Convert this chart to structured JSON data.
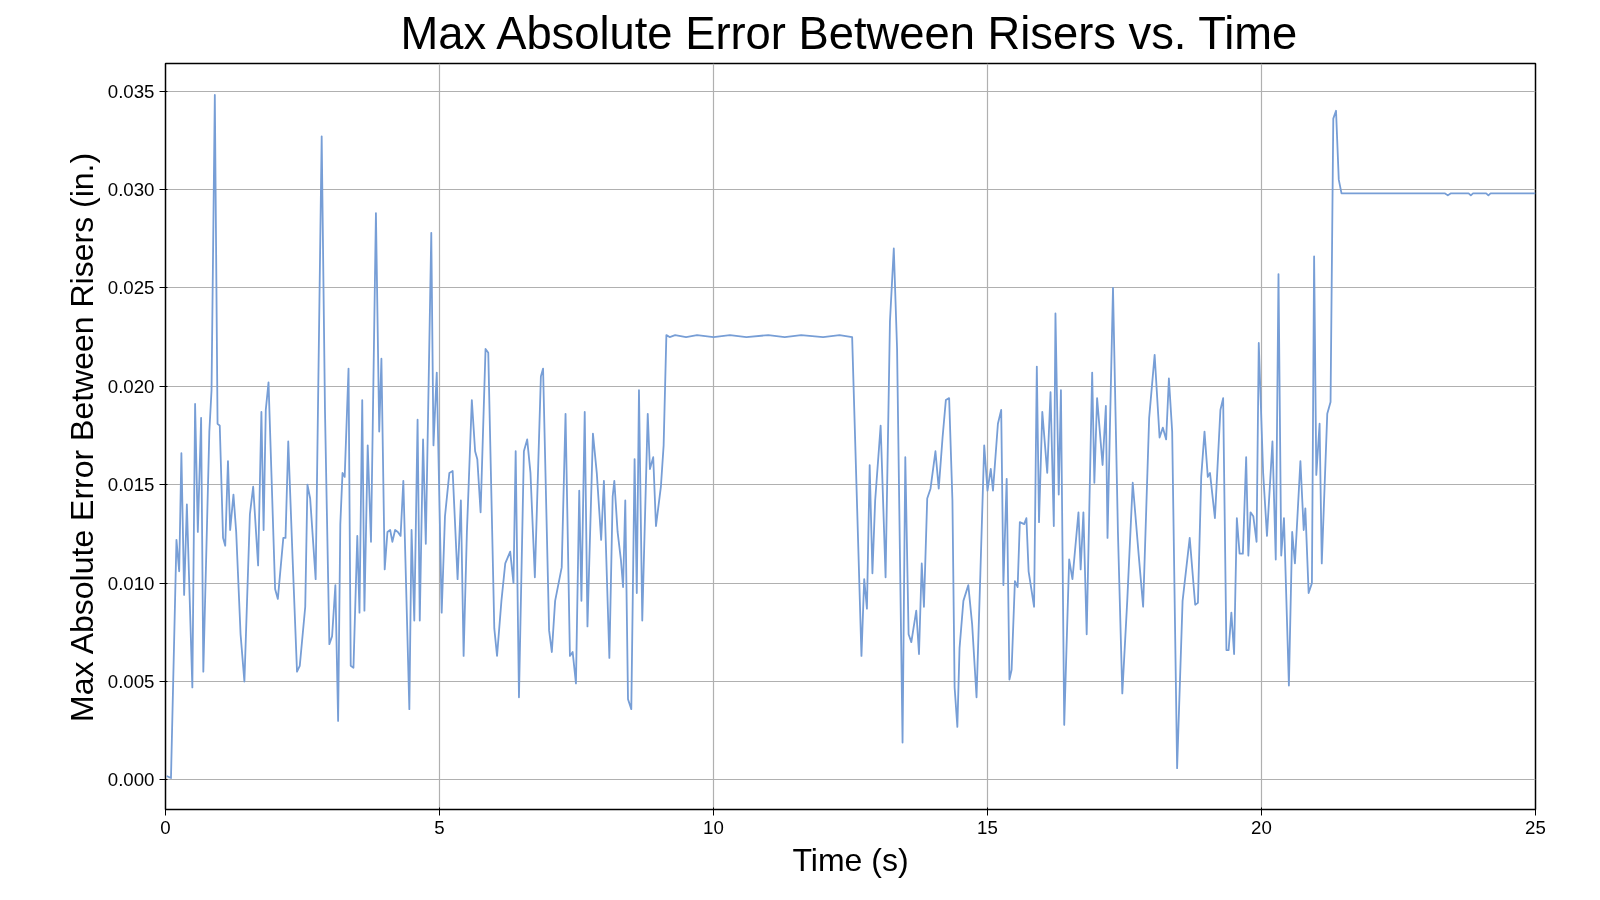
{
  "chart_data": {
    "type": "line",
    "title": "Max Absolute Error Between Risers vs. Time",
    "xlabel": "Time (s)",
    "ylabel": "Max Absolute Error Between Risers (in.)",
    "xlim": [
      0,
      25
    ],
    "ylim": [
      -0.0015,
      0.0364
    ],
    "xticks": [
      0,
      5,
      10,
      15,
      20,
      25
    ],
    "yticks": [
      {
        "value": 0,
        "label": "0.000"
      },
      {
        "value": 0.005,
        "label": "0.005"
      },
      {
        "value": 0.01,
        "label": "0.010"
      },
      {
        "value": 0.015,
        "label": "0.015"
      },
      {
        "value": 0.02,
        "label": "0.020"
      },
      {
        "value": 0.025,
        "label": "0.025"
      },
      {
        "value": 0.03,
        "label": "0.030"
      },
      {
        "value": 0.035,
        "label": "0.035"
      }
    ],
    "grid": true,
    "line_style": "solid",
    "series": [
      {
        "color": "#779ed6",
        "x": [
          0.02,
          0.1,
          0.2,
          0.25,
          0.29,
          0.34,
          0.39,
          0.49,
          0.54,
          0.59,
          0.65,
          0.69,
          0.8,
          0.84,
          0.9,
          0.95,
          0.99,
          1.05,
          1.09,
          1.14,
          1.18,
          1.24,
          1.29,
          1.37,
          1.44,
          1.54,
          1.6,
          1.69,
          1.75,
          1.79,
          1.83,
          1.88,
          2.0,
          2.05,
          2.15,
          2.19,
          2.24,
          2.32,
          2.4,
          2.45,
          2.55,
          2.59,
          2.64,
          2.74,
          2.85,
          2.91,
          2.99,
          3.04,
          3.1,
          3.15,
          3.19,
          3.23,
          3.27,
          3.34,
          3.38,
          3.43,
          3.5,
          3.54,
          3.59,
          3.63,
          3.69,
          3.75,
          3.84,
          3.9,
          3.94,
          4.0,
          4.05,
          4.1,
          4.14,
          4.19,
          4.24,
          4.29,
          4.34,
          4.45,
          4.49,
          4.54,
          4.6,
          4.64,
          4.7,
          4.75,
          4.85,
          4.89,
          4.95,
          5.04,
          5.1,
          5.18,
          5.24,
          5.33,
          5.39,
          5.44,
          5.5,
          5.59,
          5.65,
          5.69,
          5.75,
          5.84,
          5.89,
          6.0,
          6.05,
          6.13,
          6.2,
          6.29,
          6.35,
          6.39,
          6.45,
          6.54,
          6.6,
          6.66,
          6.74,
          6.85,
          6.89,
          7.0,
          7.05,
          7.11,
          7.23,
          7.3,
          7.38,
          7.43,
          7.49,
          7.55,
          7.59,
          7.65,
          7.7,
          7.8,
          7.87,
          7.95,
          8.0,
          8.1,
          8.16,
          8.19,
          8.25,
          8.31,
          8.35,
          8.39,
          8.44,
          8.5,
          8.56,
          8.6,
          8.64,
          8.7,
          8.8,
          8.84,
          8.9,
          8.95,
          9.04,
          9.09,
          9.14,
          9.2,
          9.3,
          9.5,
          9.7,
          10.0,
          10.3,
          10.6,
          11.0,
          11.3,
          11.6,
          12.0,
          12.3,
          12.53,
          12.7,
          12.75,
          12.8,
          12.85,
          12.9,
          12.95,
          13.05,
          13.14,
          13.22,
          13.29,
          13.35,
          13.45,
          13.5,
          13.56,
          13.61,
          13.7,
          13.75,
          13.8,
          13.84,
          13.9,
          13.96,
          14.05,
          14.11,
          14.18,
          14.24,
          14.3,
          14.36,
          14.4,
          14.45,
          14.49,
          14.56,
          14.65,
          14.72,
          14.8,
          14.87,
          14.94,
          15.0,
          15.06,
          15.1,
          15.19,
          15.25,
          15.29,
          15.35,
          15.4,
          15.44,
          15.5,
          15.55,
          15.59,
          15.67,
          15.71,
          15.75,
          15.85,
          15.9,
          15.94,
          16.0,
          16.09,
          16.15,
          16.21,
          16.24,
          16.3,
          16.34,
          16.4,
          16.49,
          16.55,
          16.66,
          16.7,
          16.75,
          16.81,
          16.91,
          16.95,
          17.0,
          17.1,
          17.16,
          17.19,
          17.29,
          17.38,
          17.46,
          17.55,
          17.65,
          17.76,
          17.84,
          17.95,
          18.05,
          18.14,
          18.2,
          18.26,
          18.31,
          18.37,
          18.46,
          18.56,
          18.69,
          18.79,
          18.84,
          18.9,
          18.96,
          19.02,
          19.06,
          19.15,
          19.25,
          19.3,
          19.36,
          19.4,
          19.45,
          19.5,
          19.55,
          19.6,
          19.66,
          19.72,
          19.76,
          19.8,
          19.85,
          19.91,
          19.95,
          20.03,
          20.1,
          20.2,
          20.26,
          20.31,
          20.36,
          20.41,
          20.5,
          20.56,
          20.61,
          20.71,
          20.77,
          20.8,
          20.86,
          20.92,
          20.96,
          21.0,
          21.06,
          21.1,
          21.2,
          21.26,
          21.31,
          21.36,
          21.41,
          21.46,
          23.35,
          23.4,
          23.45,
          23.78,
          23.82,
          23.86,
          24.1,
          24.14,
          24.18,
          25.0
        ],
        "values": [
          0.0002,
          0.0001,
          0.0122,
          0.0106,
          0.0166,
          0.0094,
          0.014,
          0.0047,
          0.0191,
          0.0126,
          0.0184,
          0.0055,
          0.0177,
          0.0198,
          0.0348,
          0.0181,
          0.018,
          0.0123,
          0.0119,
          0.0162,
          0.0127,
          0.0145,
          0.0126,
          0.0074,
          0.005,
          0.0135,
          0.0149,
          0.0109,
          0.0187,
          0.0127,
          0.0188,
          0.0202,
          0.0097,
          0.0092,
          0.0123,
          0.0123,
          0.0172,
          0.0112,
          0.0055,
          0.0058,
          0.0088,
          0.015,
          0.0143,
          0.0102,
          0.0327,
          0.0188,
          0.0069,
          0.0073,
          0.0099,
          0.003,
          0.013,
          0.0156,
          0.0154,
          0.0209,
          0.0058,
          0.0057,
          0.0124,
          0.0085,
          0.0193,
          0.0086,
          0.017,
          0.0121,
          0.0288,
          0.0177,
          0.0214,
          0.0107,
          0.0126,
          0.0127,
          0.0121,
          0.0127,
          0.0126,
          0.0124,
          0.0152,
          0.0036,
          0.0127,
          0.0081,
          0.0183,
          0.0081,
          0.0173,
          0.012,
          0.0278,
          0.017,
          0.0207,
          0.0085,
          0.0134,
          0.0156,
          0.0157,
          0.0102,
          0.0142,
          0.0063,
          0.0126,
          0.0193,
          0.0167,
          0.0163,
          0.0136,
          0.0219,
          0.0217,
          0.0077,
          0.0063,
          0.0091,
          0.011,
          0.0116,
          0.01,
          0.0167,
          0.0042,
          0.0167,
          0.0173,
          0.0156,
          0.0103,
          0.0205,
          0.0209,
          0.0076,
          0.0065,
          0.0091,
          0.0108,
          0.0186,
          0.0063,
          0.0065,
          0.0049,
          0.0147,
          0.0091,
          0.0187,
          0.0078,
          0.0176,
          0.0156,
          0.0122,
          0.0152,
          0.0062,
          0.0144,
          0.0152,
          0.0126,
          0.0112,
          0.0098,
          0.0142,
          0.0041,
          0.0036,
          0.0163,
          0.0095,
          0.0198,
          0.0081,
          0.0186,
          0.0158,
          0.0164,
          0.0129,
          0.0149,
          0.017,
          0.0226,
          0.0225,
          0.0226,
          0.0225,
          0.0226,
          0.0225,
          0.0226,
          0.0225,
          0.0226,
          0.0225,
          0.0226,
          0.0225,
          0.0226,
          0.0225,
          0.0063,
          0.0102,
          0.0087,
          0.016,
          0.0105,
          0.0142,
          0.018,
          0.0103,
          0.0233,
          0.027,
          0.0219,
          0.0019,
          0.0164,
          0.0074,
          0.007,
          0.0086,
          0.0064,
          0.011,
          0.0088,
          0.0143,
          0.0148,
          0.0167,
          0.0148,
          0.0174,
          0.0193,
          0.0194,
          0.0142,
          0.0047,
          0.0027,
          0.0067,
          0.0091,
          0.0099,
          0.0079,
          0.0042,
          0.0105,
          0.017,
          0.0147,
          0.0158,
          0.0147,
          0.0181,
          0.0188,
          0.0099,
          0.0153,
          0.0051,
          0.0056,
          0.0101,
          0.0098,
          0.0131,
          0.013,
          0.0133,
          0.0106,
          0.0088,
          0.021,
          0.0131,
          0.0187,
          0.0156,
          0.0197,
          0.0129,
          0.0237,
          0.0145,
          0.0198,
          0.0028,
          0.0112,
          0.0102,
          0.0136,
          0.0107,
          0.0136,
          0.0074,
          0.0207,
          0.0151,
          0.0194,
          0.016,
          0.019,
          0.0123,
          0.025,
          0.0126,
          0.0044,
          0.0091,
          0.0151,
          0.0114,
          0.0088,
          0.0184,
          0.0216,
          0.0174,
          0.0179,
          0.0173,
          0.0204,
          0.0177,
          0.0006,
          0.0091,
          0.0123,
          0.0089,
          0.009,
          0.0154,
          0.0177,
          0.0154,
          0.0156,
          0.0133,
          0.0188,
          0.0194,
          0.0066,
          0.0066,
          0.0085,
          0.0064,
          0.0133,
          0.0115,
          0.0115,
          0.0164,
          0.0114,
          0.0136,
          0.0134,
          0.0121,
          0.0222,
          0.0156,
          0.0124,
          0.0172,
          0.0112,
          0.0257,
          0.0114,
          0.0133,
          0.0048,
          0.0126,
          0.011,
          0.0162,
          0.0127,
          0.0138,
          0.0095,
          0.01,
          0.0266,
          0.0155,
          0.0181,
          0.011,
          0.0186,
          0.0192,
          0.0336,
          0.034,
          0.0305,
          0.0298,
          0.0298,
          0.0297,
          0.0298,
          0.0298,
          0.0297,
          0.0298,
          0.0298,
          0.0297,
          0.0298,
          0.0298
        ]
      }
    ]
  }
}
